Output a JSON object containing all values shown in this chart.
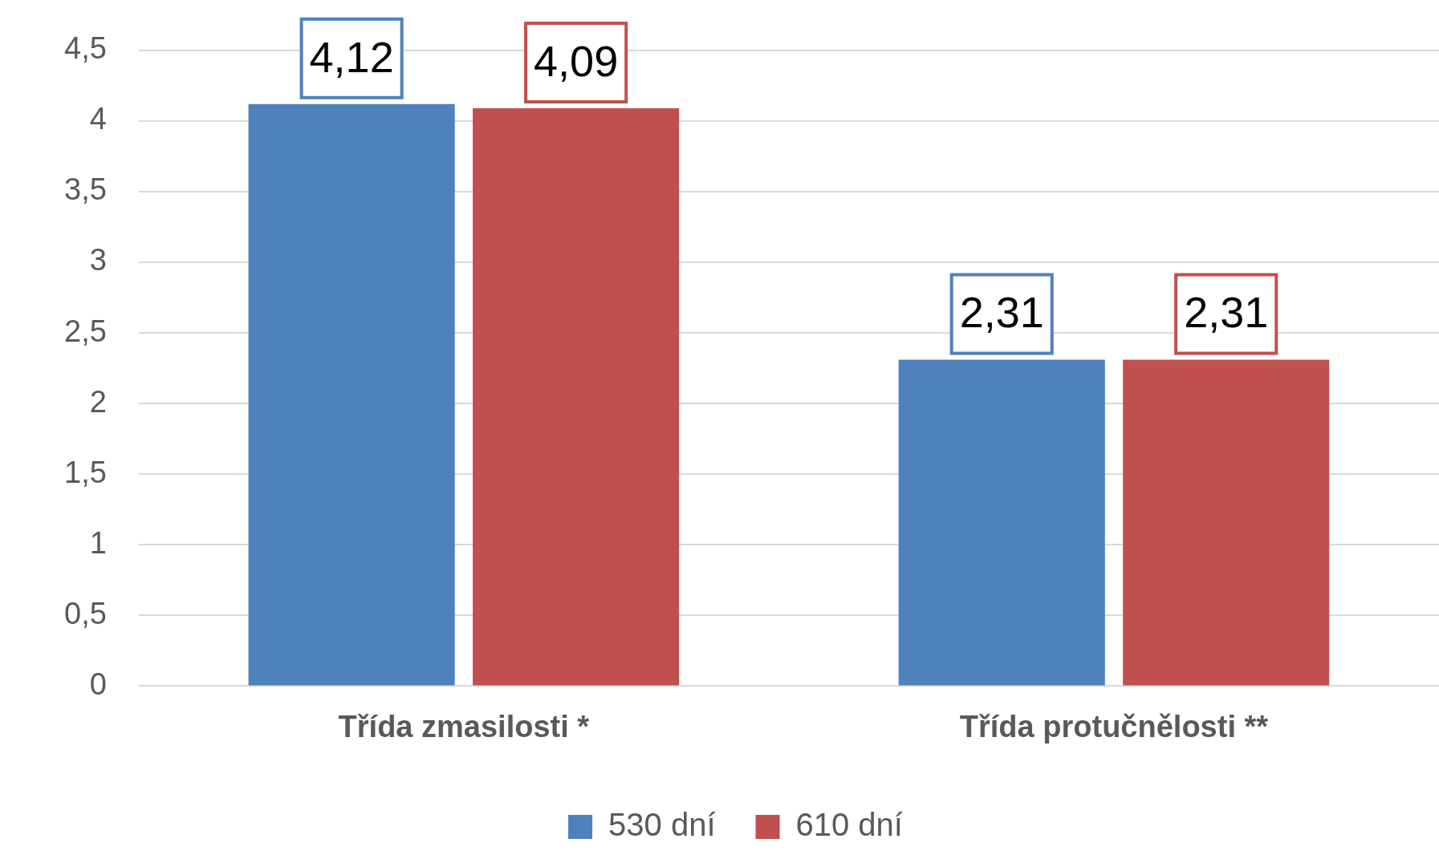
{
  "chart_data": {
    "type": "bar",
    "categories": [
      "Třída zmasilosti *",
      "Třída protučnělosti **"
    ],
    "series": [
      {
        "name": "530 dní",
        "color": "#4f81bd",
        "values": [
          4.12,
          2.31
        ],
        "value_labels": [
          "4,12",
          "2,31"
        ]
      },
      {
        "name": "610 dní",
        "color": "#c0504d",
        "values": [
          4.09,
          2.31
        ],
        "value_labels": [
          "4,09",
          "2,31"
        ]
      }
    ],
    "ylim": [
      0,
      4.5
    ],
    "yticks": [
      0,
      {
        "value": 0.5,
        "label": "0,5"
      },
      1,
      {
        "value": 1.5,
        "label": "1,5"
      },
      2,
      {
        "value": 2.5,
        "label": "2,5"
      },
      3,
      {
        "value": 3.5,
        "label": "3,5"
      },
      4,
      {
        "value": 4.5,
        "label": "4,5"
      }
    ],
    "grid": "y",
    "legend": "bottom"
  }
}
